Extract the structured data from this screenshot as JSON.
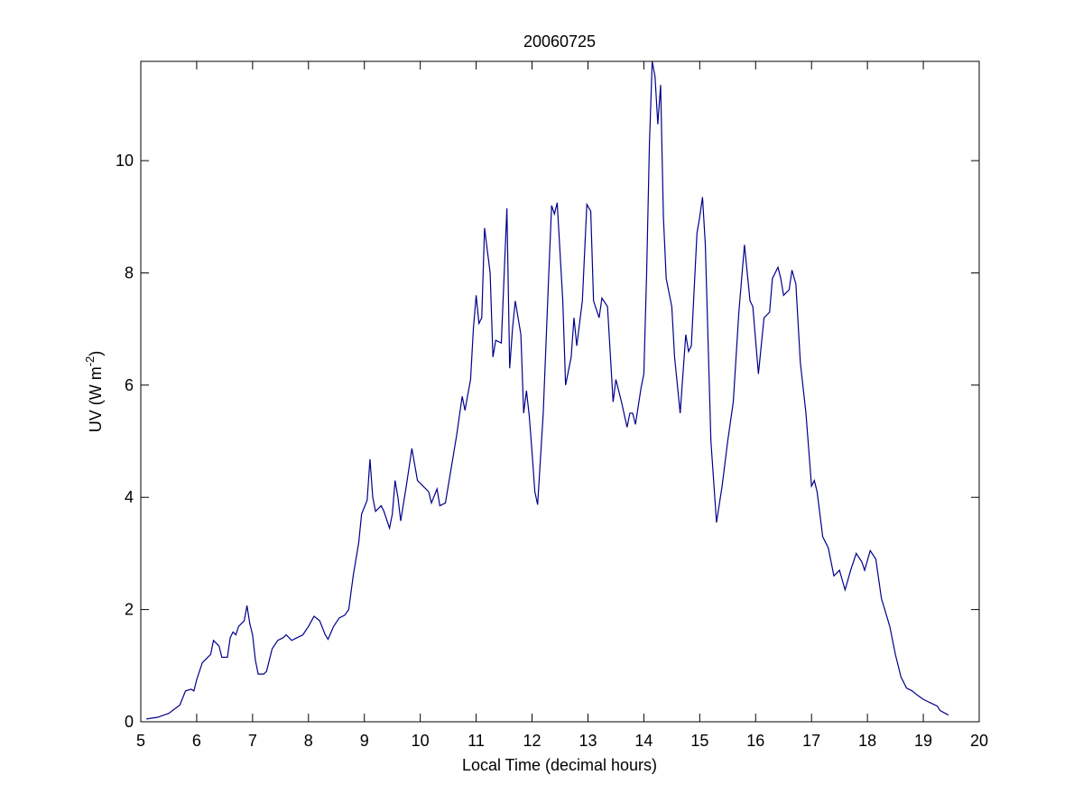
{
  "chart_data": {
    "type": "line",
    "title": "20060725",
    "xlabel": "Local Time (decimal hours)",
    "ylabel": [
      "UV (W m",
      "-2",
      ")"
    ],
    "xlim": [
      5,
      20
    ],
    "xticks": [
      5,
      6,
      7,
      8,
      9,
      10,
      11,
      12,
      13,
      14,
      15,
      16,
      17,
      18,
      19,
      20
    ],
    "ylim": [
      0,
      11.77
    ],
    "yticks": [
      0,
      2,
      4,
      6,
      8,
      10
    ],
    "grid": false,
    "series": [
      {
        "color": "#00008b",
        "x": [
          5.1,
          5.3,
          5.5,
          5.7,
          5.8,
          5.9,
          5.95,
          6.0,
          6.1,
          6.2,
          6.25,
          6.3,
          6.4,
          6.45,
          6.55,
          6.6,
          6.65,
          6.7,
          6.75,
          6.85,
          6.9,
          6.95,
          7.0,
          7.05,
          7.1,
          7.2,
          7.25,
          7.35,
          7.45,
          7.55,
          7.6,
          7.7,
          7.8,
          7.9,
          8.0,
          8.1,
          8.2,
          8.3,
          8.35,
          8.45,
          8.55,
          8.65,
          8.72,
          8.8,
          8.9,
          8.95,
          9.05,
          9.1,
          9.15,
          9.2,
          9.3,
          9.35,
          9.45,
          9.5,
          9.55,
          9.6,
          9.65,
          9.75,
          9.85,
          9.95,
          10.05,
          10.15,
          10.2,
          10.3,
          10.35,
          10.45,
          10.55,
          10.65,
          10.75,
          10.8,
          10.9,
          10.95,
          11.0,
          11.05,
          11.1,
          11.15,
          11.25,
          11.3,
          11.35,
          11.45,
          11.55,
          11.6,
          11.65,
          11.7,
          11.8,
          11.85,
          11.9,
          11.95,
          12.0,
          12.05,
          12.1,
          12.2,
          12.3,
          12.35,
          12.4,
          12.45,
          12.55,
          12.6,
          12.7,
          12.75,
          12.8,
          12.9,
          12.98,
          13.05,
          13.1,
          13.2,
          13.25,
          13.35,
          13.45,
          13.5,
          13.6,
          13.7,
          13.75,
          13.8,
          13.85,
          13.95,
          14.0,
          14.05,
          14.1,
          14.15,
          14.2,
          14.25,
          14.3,
          14.35,
          14.4,
          14.5,
          14.55,
          14.65,
          14.75,
          14.8,
          14.85,
          14.95,
          15.0,
          15.05,
          15.1,
          15.2,
          15.3,
          15.4,
          15.5,
          15.6,
          15.7,
          15.8,
          15.9,
          15.95,
          16.05,
          16.15,
          16.25,
          16.3,
          16.4,
          16.45,
          16.5,
          16.6,
          16.65,
          16.72,
          16.8,
          16.9,
          17.0,
          17.05,
          17.1,
          17.2,
          17.3,
          17.4,
          17.5,
          17.6,
          17.7,
          17.8,
          17.9,
          17.95,
          18.05,
          18.15,
          18.25,
          18.4,
          18.5,
          18.6,
          18.7,
          18.8,
          18.9,
          19.0,
          19.1,
          19.25,
          19.3,
          19.45
        ],
        "values": [
          0.05,
          0.08,
          0.15,
          0.3,
          0.55,
          0.58,
          0.55,
          0.75,
          1.05,
          1.15,
          1.2,
          1.45,
          1.35,
          1.15,
          1.15,
          1.5,
          1.6,
          1.55,
          1.7,
          1.8,
          2.07,
          1.75,
          1.55,
          1.1,
          0.85,
          0.85,
          0.9,
          1.3,
          1.45,
          1.5,
          1.55,
          1.45,
          1.5,
          1.55,
          1.7,
          1.88,
          1.8,
          1.55,
          1.47,
          1.7,
          1.85,
          1.9,
          2.0,
          2.6,
          3.2,
          3.7,
          3.95,
          4.68,
          4.0,
          3.75,
          3.85,
          3.75,
          3.45,
          3.7,
          4.3,
          4.0,
          3.58,
          4.2,
          4.87,
          4.3,
          4.2,
          4.1,
          3.9,
          4.15,
          3.85,
          3.9,
          4.5,
          5.1,
          5.8,
          5.55,
          6.1,
          7.0,
          7.6,
          7.1,
          7.2,
          8.8,
          8.0,
          6.5,
          6.8,
          6.75,
          9.15,
          6.3,
          7.0,
          7.5,
          6.9,
          5.5,
          5.9,
          5.45,
          4.8,
          4.1,
          3.87,
          5.5,
          8.0,
          9.2,
          9.05,
          9.25,
          7.5,
          6.0,
          6.5,
          7.2,
          6.7,
          7.5,
          9.22,
          9.1,
          7.5,
          7.2,
          7.55,
          7.4,
          5.7,
          6.1,
          5.7,
          5.25,
          5.5,
          5.5,
          5.3,
          5.95,
          6.2,
          8.0,
          10.3,
          11.77,
          11.5,
          10.65,
          11.35,
          9.0,
          7.9,
          7.4,
          6.5,
          5.5,
          6.9,
          6.6,
          6.7,
          8.7,
          9.0,
          9.35,
          8.5,
          5.0,
          3.55,
          4.2,
          5.0,
          5.7,
          7.3,
          8.5,
          7.5,
          7.4,
          6.2,
          7.2,
          7.3,
          7.9,
          8.1,
          7.9,
          7.6,
          7.7,
          8.05,
          7.8,
          6.4,
          5.5,
          4.2,
          4.3,
          4.1,
          3.3,
          3.1,
          2.6,
          2.7,
          2.35,
          2.7,
          3.0,
          2.85,
          2.7,
          3.05,
          2.9,
          2.2,
          1.7,
          1.2,
          0.8,
          0.6,
          0.55,
          0.47,
          0.4,
          0.35,
          0.28,
          0.2,
          0.12
        ]
      }
    ]
  }
}
